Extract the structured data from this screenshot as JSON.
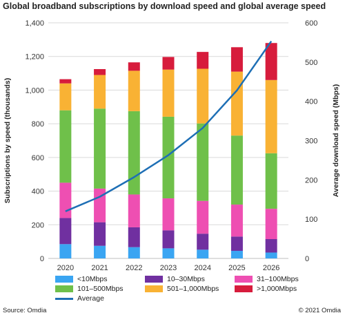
{
  "chart_data": {
    "type": "bar",
    "stacked": true,
    "title": "Global broadband  subscriptions by download speed and global average speed",
    "ylabel": "Subscriptions by speed (thousands)",
    "y2label": "Average download speed (Mbps)",
    "categories": [
      "2020",
      "2021",
      "2022",
      "2023",
      "2024",
      "2025",
      "2026"
    ],
    "ylim": [
      0,
      1400
    ],
    "yticks": [
      "0",
      "200",
      "400",
      "600",
      "800",
      "1,000",
      "1,200",
      "1,400"
    ],
    "y2lim": [
      0,
      600
    ],
    "y2ticks": [
      "0",
      "100",
      "200",
      "300",
      "400",
      "500",
      "600"
    ],
    "series": [
      {
        "name": "<10Mbps",
        "color": "#3aa5f2",
        "values": [
          85,
          75,
          67,
          60,
          52,
          45,
          35
        ]
      },
      {
        "name": "10–30Mbps",
        "color": "#7030a0",
        "values": [
          155,
          140,
          118,
          107,
          95,
          85,
          80
        ]
      },
      {
        "name": "31–100Mbps",
        "color": "#ee4fb2",
        "values": [
          210,
          200,
          195,
          190,
          195,
          190,
          180
        ]
      },
      {
        "name": "101–500Mbps",
        "color": "#6fc04a",
        "values": [
          430,
          475,
          495,
          485,
          460,
          410,
          330
        ]
      },
      {
        "name": "501–1,000Mbps",
        "color": "#f9b234",
        "values": [
          160,
          200,
          240,
          280,
          325,
          380,
          435
        ]
      },
      {
        "name": ">1,000Mbps",
        "color": "#d71c3c",
        "values": [
          25,
          35,
          50,
          75,
          100,
          145,
          220
        ]
      }
    ],
    "line": {
      "name": "Average",
      "color": "#1e6fb5",
      "axis": "right",
      "values": [
        120,
        157,
        207,
        263,
        332,
        428,
        553
      ]
    },
    "legend_position": "bottom"
  },
  "legend": {
    "items": [
      {
        "label": "<10Mbps",
        "color": "#3aa5f2"
      },
      {
        "label": "10–30Mbps",
        "color": "#7030a0"
      },
      {
        "label": "31–100Mbps",
        "color": "#ee4fb2"
      },
      {
        "label": "101–500Mbps",
        "color": "#6fc04a"
      },
      {
        "label": "501–1,000Mbps",
        "color": "#f9b234"
      },
      {
        "label": ">1,000Mbps",
        "color": "#d71c3c"
      }
    ],
    "line_label": "Average",
    "line_color": "#1e6fb5"
  },
  "footer": {
    "source": "Source: Omdia",
    "copyright": "© 2021 Omdia"
  }
}
